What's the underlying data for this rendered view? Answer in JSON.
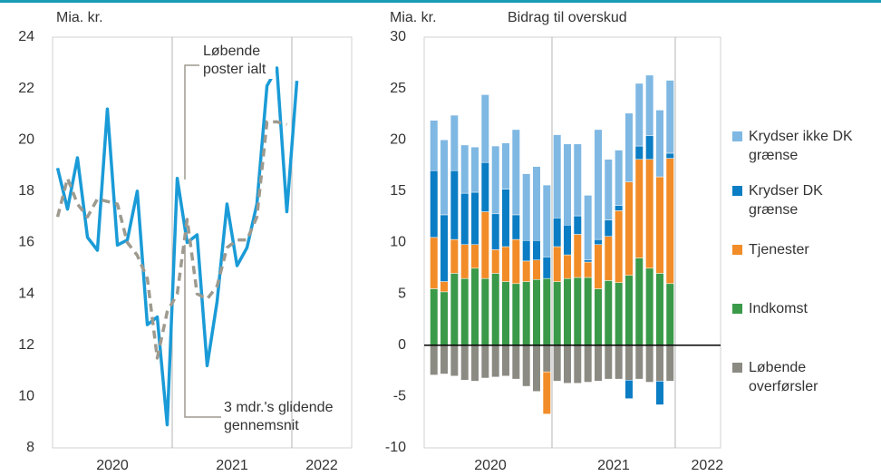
{
  "chart_data": [
    {
      "type": "line",
      "y_label": "Mia. kr.",
      "annotations": [
        "Løbende poster ialt",
        "3 mdr.'s glidende gennemsnit"
      ],
      "x": [
        2020.042,
        2020.125,
        2020.208,
        2020.292,
        2020.375,
        2020.458,
        2020.542,
        2020.625,
        2020.708,
        2020.792,
        2020.875,
        2020.958,
        2021.042,
        2021.125,
        2021.208,
        2021.292,
        2021.375,
        2021.458,
        2021.542,
        2021.625,
        2021.708,
        2021.792,
        2021.875,
        2021.958,
        2022.042
      ],
      "series": [
        {
          "name": "Løbende poster ialt",
          "color": "#1a9bd7",
          "values": [
            18.9,
            17.3,
            19.3,
            16.2,
            15.7,
            21.2,
            15.9,
            16.1,
            18.0,
            12.8,
            13.1,
            8.9,
            18.5,
            16.0,
            16.3,
            11.2,
            13.7,
            17.5,
            15.1,
            15.8,
            17.5,
            22.1,
            22.8,
            17.2,
            22.3
          ]
        },
        {
          "name": "3 mdr.'s glidende gennemsnit",
          "color": "#9e9a8f",
          "dashed": true,
          "values": [
            17.0,
            18.5,
            17.5,
            17.0,
            17.7,
            17.6,
            17.5,
            16.0,
            15.5,
            14.6,
            11.5,
            13.3,
            14.0,
            16.9,
            14.0,
            13.8,
            14.3,
            15.8,
            16.1,
            16.1,
            17.0,
            20.7,
            20.7,
            20.6,
            null
          ]
        }
      ],
      "xlim": [
        2020,
        2022.5
      ],
      "xticks": [
        {
          "value": 2020.5,
          "label": "2020"
        },
        {
          "value": 2021.5,
          "label": "2021"
        },
        {
          "value": 2022.25,
          "label": "2022"
        }
      ],
      "xgrid": [
        2021,
        2022
      ],
      "ylim": [
        8,
        24
      ],
      "yticks": [
        8,
        10,
        12,
        14,
        16,
        18,
        20,
        22,
        24
      ]
    },
    {
      "type": "bar",
      "stacked": true,
      "title": "Bidrag til overskud",
      "y_label": "Mia. kr.",
      "x": [
        2020.042,
        2020.125,
        2020.208,
        2020.292,
        2020.375,
        2020.458,
        2020.542,
        2020.625,
        2020.708,
        2020.792,
        2020.875,
        2020.958,
        2021.042,
        2021.125,
        2021.208,
        2021.292,
        2021.375,
        2021.458,
        2021.542,
        2021.625,
        2021.708,
        2021.792,
        2021.875,
        2021.958
      ],
      "series": [
        {
          "name": "Indkomst",
          "color": "#3a9a49",
          "values": [
            5.5,
            5.2,
            7.0,
            6.5,
            7.5,
            6.5,
            7.0,
            6.2,
            6.0,
            6.2,
            6.4,
            6.5,
            6.2,
            6.5,
            6.6,
            6.6,
            5.5,
            6.3,
            6.1,
            6.8,
            8.5,
            7.5,
            7.0,
            6.0
          ]
        },
        {
          "name": "Tjenester",
          "color": "#f28c28",
          "values": [
            5.0,
            1.0,
            3.3,
            3.3,
            2.3,
            6.5,
            2.3,
            3.4,
            4.3,
            2.0,
            1.9,
            -4.1,
            3.4,
            2.3,
            4.2,
            1.5,
            4.3,
            4.3,
            7.0,
            9.1,
            9.6,
            10.6,
            9.4,
            12.2
          ]
        },
        {
          "name": "Krydser DK grænse",
          "color": "#0b7dc4",
          "values": [
            6.5,
            6.5,
            6.7,
            5.0,
            5.1,
            4.8,
            3.5,
            5.6,
            2.4,
            2.0,
            1.9,
            2.1,
            2.8,
            2.9,
            1.8,
            0.2,
            0.5,
            1.6,
            0.5,
            -1.8,
            1.3,
            2.3,
            -2.3,
            0.5
          ]
        },
        {
          "name": "Krydser ikke DK grænse",
          "color": "#7fb8e3",
          "values": [
            4.9,
            7.3,
            5.4,
            4.7,
            4.4,
            6.6,
            6.6,
            4.5,
            8.3,
            6.5,
            7.2,
            7.0,
            8.1,
            7.9,
            7.0,
            6.3,
            10.7,
            5.9,
            5.4,
            6.7,
            6.1,
            5.9,
            6.5,
            7.1
          ]
        },
        {
          "name": "Løbende overførsler",
          "color": "#8c8b83",
          "values": [
            -2.9,
            -2.8,
            -3.0,
            -3.4,
            -3.5,
            -3.2,
            -3.1,
            -3.0,
            -3.3,
            -4.0,
            -4.5,
            -2.6,
            -3.5,
            -3.7,
            -3.7,
            -3.6,
            -3.5,
            -3.3,
            -3.3,
            -3.4,
            -3.3,
            -3.6,
            -3.5,
            -3.5
          ]
        }
      ],
      "xlim": [
        2019.963,
        2022.368
      ],
      "xticks": [
        {
          "value": 2020.5,
          "label": "2020"
        },
        {
          "value": 2021.5,
          "label": "2021"
        },
        {
          "value": 2022.26,
          "label": "2022"
        }
      ],
      "xgrid": [
        2021,
        2022
      ],
      "ylim": [
        -10,
        30
      ],
      "yticks": [
        -10,
        -5,
        0,
        5,
        10,
        15,
        20,
        25,
        30
      ],
      "zero_line": true
    }
  ]
}
